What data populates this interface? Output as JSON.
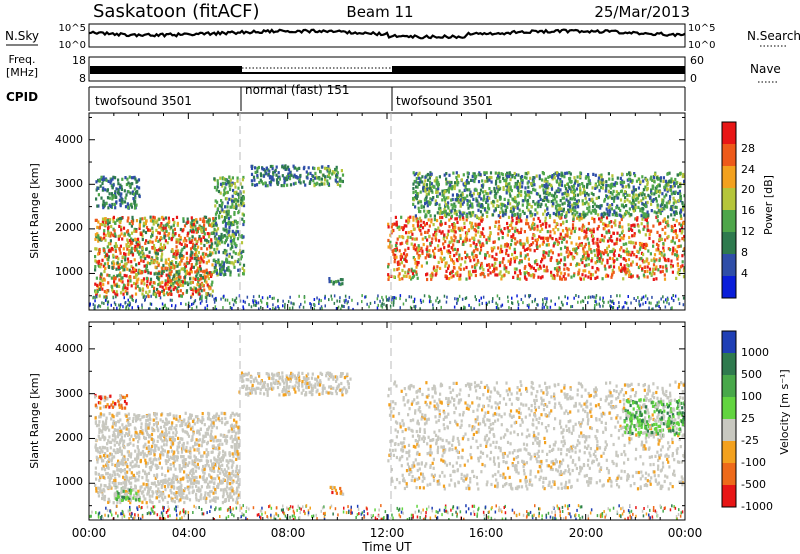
{
  "header": {
    "station": "Saskatoon (fitACF)",
    "beam": "Beam 11",
    "date": "25/Mar/2013"
  },
  "noise_panel": {
    "left_label": "N.Sky",
    "right_label": "N.Search",
    "left_ticks": [
      "10^5",
      "10^0"
    ],
    "right_ticks": [
      "10^5",
      "10^0"
    ]
  },
  "freq_panel": {
    "left_label_top": "Freq.",
    "left_label_bottom": "[MHz]",
    "right_label": "Nave",
    "left_ticks": [
      "18",
      "8"
    ],
    "right_ticks": [
      "60",
      "0"
    ]
  },
  "cpid": {
    "label": "CPID",
    "segments": [
      {
        "name": "twofsound 3501",
        "start": 0,
        "end": 6
      },
      {
        "name": "normal (fast) 151",
        "start": 6,
        "end": 12
      },
      {
        "name": "twofsound 3501",
        "start": 12,
        "end": 24
      }
    ]
  },
  "chart_data": [
    {
      "type": "heatmap",
      "ylabel": "Slant Range [km]",
      "ylim": [
        180,
        4600
      ],
      "yticks": [
        "1000",
        "2000",
        "3000",
        "4000"
      ],
      "xlim": [
        0,
        24
      ],
      "colorbar": {
        "label": "Power [dB]",
        "ticks": [
          "4",
          "8",
          "12",
          "16",
          "20",
          "24",
          "28"
        ],
        "colors": [
          "#0a1ed9",
          "#2f4ea8",
          "#2e7a4e",
          "#4ea64a",
          "#b5c53a",
          "#f3a11e",
          "#ee5a1a",
          "#e81616"
        ]
      },
      "mode_boundaries": [
        6,
        12
      ],
      "scatter_regions": [
        {
          "x": [
            0.2,
            5.0
          ],
          "y": [
            500,
            2300
          ],
          "level": "medium-high"
        },
        {
          "x": [
            0.2,
            2.0
          ],
          "y": [
            2500,
            3200
          ],
          "level": "low"
        },
        {
          "x": [
            5.0,
            6.2
          ],
          "y": [
            1000,
            3200
          ],
          "level": "low-medium"
        },
        {
          "x": [
            6.5,
            9.0
          ],
          "y": [
            3000,
            3450
          ],
          "level": "low"
        },
        {
          "x": [
            9.0,
            10.2
          ],
          "y": [
            3000,
            3450
          ],
          "level": "low-medium"
        },
        {
          "x": [
            9.6,
            10.2
          ],
          "y": [
            780,
            950
          ],
          "level": "low"
        },
        {
          "x": [
            12.0,
            24.0
          ],
          "y": [
            900,
            2300
          ],
          "level": "high"
        },
        {
          "x": [
            13.0,
            24.0
          ],
          "y": [
            2300,
            3300
          ],
          "level": "low-medium"
        }
      ]
    },
    {
      "type": "heatmap",
      "ylabel": "Slant Range [km]",
      "ylim": [
        180,
        4600
      ],
      "yticks": [
        "1000",
        "2000",
        "3000",
        "4000"
      ],
      "xlim": [
        0,
        24
      ],
      "xticks": [
        "00:00",
        "04:00",
        "08:00",
        "12:00",
        "16:00",
        "20:00",
        "00:00"
      ],
      "xlabel": "Time UT",
      "colorbar": {
        "label": "Velocity [m s⁻¹]",
        "ticks": [
          "1000",
          "500",
          "100",
          "25",
          "-25",
          "-100",
          "-500",
          "-1000"
        ],
        "colors": [
          "#1f3fb5",
          "#2f7a4e",
          "#48a84a",
          "#62d440",
          "#c8c8c0",
          "#f3a11e",
          "#ee6a1a",
          "#e81616"
        ]
      },
      "mode_boundaries": [
        6,
        12
      ],
      "scatter_regions": [
        {
          "x": [
            0.2,
            6.0
          ],
          "y": [
            600,
            2600
          ],
          "level": "ground-scatter"
        },
        {
          "x": [
            0.2,
            1.5
          ],
          "y": [
            2700,
            3000
          ],
          "level": "negative"
        },
        {
          "x": [
            1.0,
            2.0
          ],
          "y": [
            650,
            950
          ],
          "level": "positive"
        },
        {
          "x": [
            6.0,
            10.5
          ],
          "y": [
            3000,
            3500
          ],
          "level": "ground-scatter"
        },
        {
          "x": [
            9.6,
            10.2
          ],
          "y": [
            780,
            950
          ],
          "level": "negative"
        },
        {
          "x": [
            12.0,
            24.0
          ],
          "y": [
            900,
            3300
          ],
          "level": "ground-scatter"
        },
        {
          "x": [
            21.5,
            24.0
          ],
          "y": [
            2100,
            2900
          ],
          "level": "positive"
        }
      ]
    }
  ]
}
